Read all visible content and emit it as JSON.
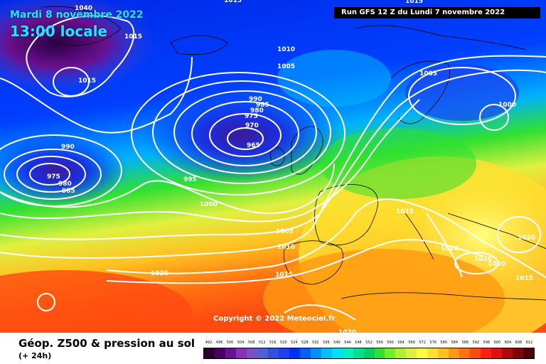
{
  "header": {
    "date": "Mardi 8 novembre 2022",
    "time": "13:00 locale",
    "run": "Run GFS 12 Z du Lundi 7 novembre 2022"
  },
  "copyright": "Copyright © 2022 Meteociel.fr",
  "footer": {
    "title": "Géop. Z500 & pression au sol",
    "subtitle": "(+ 24h)"
  },
  "scale": {
    "labels": [
      "492",
      "496",
      "500",
      "504",
      "508",
      "512",
      "516",
      "520",
      "524",
      "528",
      "532",
      "536",
      "540",
      "544",
      "548",
      "552",
      "556",
      "560",
      "564",
      "568",
      "572",
      "576",
      "580",
      "584",
      "588",
      "592",
      "596",
      "600",
      "604",
      "608",
      "612"
    ],
    "colors": [
      "#2a0030",
      "#4a0060",
      "#6a1090",
      "#8a30b0",
      "#7a50c8",
      "#5060d0",
      "#3050e0",
      "#1a40f0",
      "#0030ff",
      "#0060ff",
      "#0090ff",
      "#00c0ff",
      "#00e0f0",
      "#00f0c0",
      "#00e090",
      "#00d060",
      "#30e030",
      "#70f020",
      "#b0f030",
      "#e0f040",
      "#ffff40",
      "#ffe030",
      "#ffc020",
      "#ff9a10",
      "#ff7010",
      "#ff4a10",
      "#ff2010",
      "#e01010",
      "#b00808",
      "#800404",
      "#500000"
    ]
  },
  "pressure_labels": [
    {
      "text": "1040"
    },
    {
      "text": "1015"
    },
    {
      "text": "1015"
    },
    {
      "text": "1015"
    },
    {
      "text": "1010"
    },
    {
      "text": "1005"
    },
    {
      "text": "990"
    },
    {
      "text": "985"
    },
    {
      "text": "980"
    },
    {
      "text": "975"
    },
    {
      "text": "970"
    },
    {
      "text": "965"
    },
    {
      "text": "990"
    },
    {
      "text": "975"
    },
    {
      "text": "980"
    },
    {
      "text": "985"
    },
    {
      "text": "995"
    },
    {
      "text": "1000"
    },
    {
      "text": "1005"
    },
    {
      "text": "1010"
    },
    {
      "text": "1015"
    },
    {
      "text": "1020"
    },
    {
      "text": "1015"
    },
    {
      "text": "1020"
    },
    {
      "text": "1005"
    },
    {
      "text": "1000"
    },
    {
      "text": "1015"
    },
    {
      "text": "1020"
    },
    {
      "text": "1020"
    },
    {
      "text": "1020"
    },
    {
      "text": "1020"
    },
    {
      "text": "1015"
    }
  ]
}
